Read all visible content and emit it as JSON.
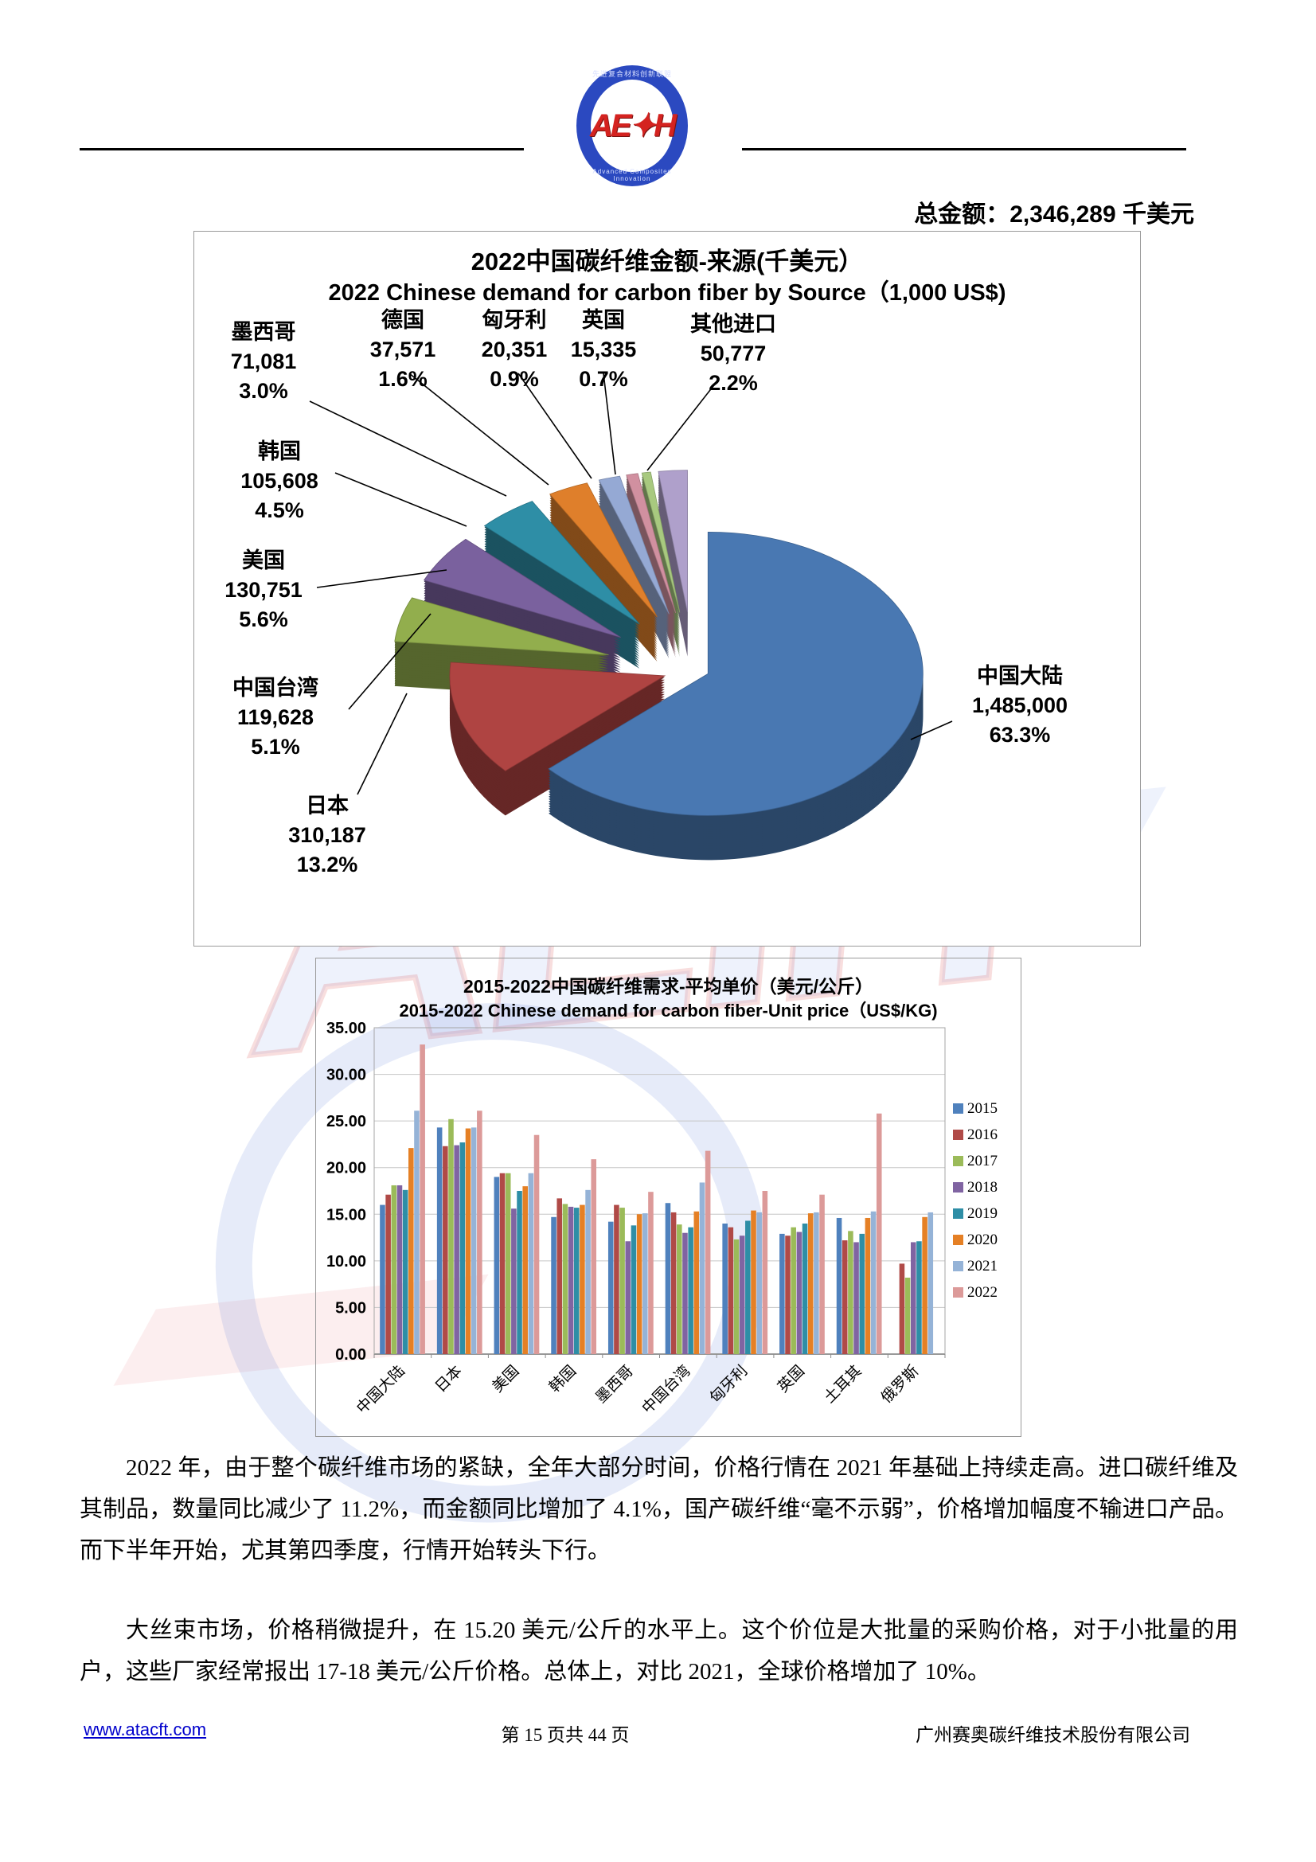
{
  "header": {
    "logo_text": "AE✦H",
    "logo_arc_top": "先进复合材料创新联盟",
    "logo_arc_bottom": "Advanced Composites Innovation"
  },
  "summary": {
    "label": "总金额：",
    "value": "2,346,289",
    "unit": " 千美元"
  },
  "chart_data": [
    {
      "type": "pie",
      "title_zh": "2022中国碳纤维金额-来源(千美元）",
      "title_en": "2022 Chinese demand for carbon fiber by Source（1,000 US$)",
      "total": 2346289,
      "slices": [
        {
          "label": "中国大陆",
          "value": 1485000,
          "value_text": "1,485,000",
          "pct": "63.3%",
          "color": "#4978B2"
        },
        {
          "label": "日本",
          "value": 310187,
          "value_text": "310,187",
          "pct": "13.2%",
          "color": "#AF4442"
        },
        {
          "label": "中国台湾",
          "value": 119628,
          "value_text": "119,628",
          "pct": "5.1%",
          "color": "#92AE4D"
        },
        {
          "label": "美国",
          "value": 130751,
          "value_text": "130,751",
          "pct": "5.6%",
          "color": "#7A619E"
        },
        {
          "label": "韩国",
          "value": 105608,
          "value_text": "105,608",
          "pct": "4.5%",
          "color": "#2E8EA6"
        },
        {
          "label": "墨西哥",
          "value": 71081,
          "value_text": "71,081",
          "pct": "3.0%",
          "color": "#DF7F2B"
        },
        {
          "label": "德国",
          "value": 37571,
          "value_text": "37,571",
          "pct": "1.6%",
          "color": "#95A9D4"
        },
        {
          "label": "匈牙利",
          "value": 20351,
          "value_text": "20,351",
          "pct": "0.9%",
          "color": "#D190A0"
        },
        {
          "label": "英国",
          "value": 15335,
          "value_text": "15,335",
          "pct": "0.7%",
          "color": "#A8C97F"
        },
        {
          "label": "其他进口",
          "value": 50777,
          "value_text": "50,777",
          "pct": "2.2%",
          "color": "#AFA0CB"
        }
      ]
    },
    {
      "type": "bar",
      "title_zh": "2015-2022中国碳纤维需求-平均单价（美元/公斤）",
      "title_en": "2015-2022 Chinese demand for carbon fiber-Unit price（US$/KG)",
      "categories": [
        "中国大陆",
        "日本",
        "美国",
        "韩国",
        "墨西哥",
        "中国台湾",
        "匈牙利",
        "英国",
        "土耳其",
        "俄罗斯"
      ],
      "series": [
        {
          "name": "2015",
          "color": "#4F81BD",
          "values": [
            16.0,
            24.3,
            19.0,
            14.7,
            14.2,
            16.2,
            14.0,
            12.9,
            14.6,
            null
          ]
        },
        {
          "name": "2016",
          "color": "#B04A47",
          "values": [
            17.1,
            22.3,
            19.4,
            16.7,
            16.0,
            15.2,
            13.6,
            12.7,
            12.2,
            9.7
          ]
        },
        {
          "name": "2017",
          "color": "#9BBB59",
          "values": [
            18.1,
            25.2,
            19.4,
            16.1,
            15.7,
            13.9,
            12.3,
            13.6,
            13.2,
            8.2
          ]
        },
        {
          "name": "2018",
          "color": "#8064A2",
          "values": [
            18.1,
            22.4,
            15.6,
            15.8,
            12.1,
            13.0,
            12.7,
            13.1,
            12.0,
            12.0
          ]
        },
        {
          "name": "2019",
          "color": "#2E8EA6",
          "values": [
            17.6,
            22.7,
            17.5,
            15.7,
            13.8,
            13.6,
            14.3,
            14.0,
            12.9,
            12.1
          ]
        },
        {
          "name": "2020",
          "color": "#E58025",
          "values": [
            22.1,
            24.2,
            18.0,
            16.0,
            15.0,
            15.3,
            15.4,
            15.1,
            14.6,
            14.7
          ]
        },
        {
          "name": "2021",
          "color": "#95B3D7",
          "values": [
            26.1,
            24.3,
            19.4,
            17.6,
            15.1,
            18.4,
            15.2,
            15.2,
            15.3,
            15.2
          ]
        },
        {
          "name": "2022",
          "color": "#DC9A99",
          "values": [
            33.2,
            26.1,
            23.5,
            20.9,
            17.4,
            21.8,
            17.5,
            17.1,
            25.8,
            null
          ]
        }
      ],
      "ylim": [
        0,
        35
      ],
      "ytick_step": 5,
      "ytick_labels": [
        "0.00",
        "5.00",
        "10.00",
        "15.00",
        "20.00",
        "25.00",
        "30.00",
        "35.00"
      ],
      "grid": true,
      "legend_position": "right"
    }
  ],
  "paragraphs": [
    "2022 年，由于整个碳纤维市场的紧缺，全年大部分时间，价格行情在 2021 年基础上持续走高。进口碳纤维及其制品，数量同比减少了 11.2%，而金额同比增加了 4.1%，国产碳纤维“毫不示弱”，价格增加幅度不输进口产品。而下半年开始，尤其第四季度，行情开始转头下行。",
    "大丝束市场，价格稍微提升，在 15.20 美元/公斤的水平上。这个价位是大批量的采购价格，对于小批量的用户，这些厂家经常报出 17-18 美元/公斤价格。总体上，对比 2021，全球价格增加了 10%。"
  ],
  "footer": {
    "link": "www.atacft.com",
    "page_info": "第 15 页共 44 页",
    "company": "广州赛奥碳纤维技术股份有限公司"
  }
}
